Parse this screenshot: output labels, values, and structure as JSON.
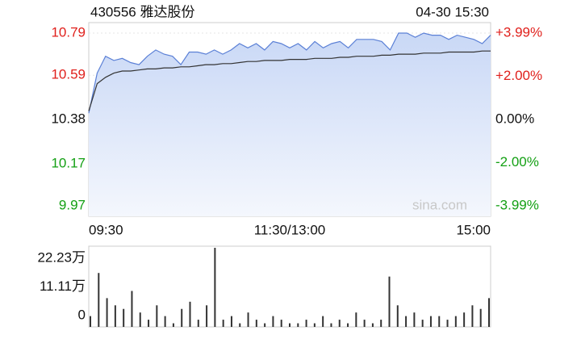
{
  "chart_data": [
    {
      "type": "line",
      "title": "430556 雅达股份",
      "timestamp": "04-30 15:30",
      "watermark": "sina.com",
      "x": [
        0,
        5,
        10,
        15,
        20,
        25,
        30,
        35,
        40,
        45,
        50,
        55,
        60,
        65,
        70,
        75,
        80,
        85,
        90,
        95,
        100,
        105,
        110,
        115,
        120,
        125,
        130,
        135,
        140,
        145,
        150,
        155,
        160,
        165,
        170,
        175,
        180,
        185,
        190,
        195,
        200,
        205,
        210,
        215,
        220,
        225,
        230,
        235,
        240
      ],
      "xlim": [
        0,
        240
      ],
      "xticks": [
        {
          "value": 0,
          "label": "09:30"
        },
        {
          "value": 120,
          "label": "11:30/13:00"
        },
        {
          "value": 240,
          "label": "15:00"
        }
      ],
      "ylim": [
        9.97,
        10.79
      ],
      "yticks": [
        10.79,
        10.59,
        10.38,
        10.17,
        9.97
      ],
      "y2lim": [
        -3.99,
        3.99
      ],
      "y2ticks": [
        {
          "value": 3.99,
          "label": "+3.99%"
        },
        {
          "value": 2.0,
          "label": "+2.00%"
        },
        {
          "value": 0,
          "label": "0.00%"
        },
        {
          "value": -2.0,
          "label": "-2.00%"
        },
        {
          "value": -3.99,
          "label": "-3.99%"
        }
      ],
      "up_color": "#e0201c",
      "down_color": "#14a014",
      "flat_color": "#111111",
      "series": [
        {
          "color": "#5b80d6",
          "area": true,
          "values": [
            10.41,
            10.6,
            10.68,
            10.66,
            10.67,
            10.65,
            10.64,
            10.68,
            10.71,
            10.69,
            10.68,
            10.64,
            10.7,
            10.7,
            10.69,
            10.71,
            10.69,
            10.71,
            10.74,
            10.72,
            10.74,
            10.71,
            10.75,
            10.74,
            10.72,
            10.74,
            10.71,
            10.75,
            10.72,
            10.74,
            10.75,
            10.72,
            10.76,
            10.76,
            10.76,
            10.75,
            10.71,
            10.79,
            10.79,
            10.77,
            10.79,
            10.78,
            10.78,
            10.76,
            10.78,
            10.77,
            10.76,
            10.74,
            10.78
          ]
        },
        {
          "color": "#333333",
          "area": false,
          "values": [
            10.42,
            10.55,
            10.58,
            10.6,
            10.61,
            10.61,
            10.615,
            10.62,
            10.62,
            10.625,
            10.625,
            10.63,
            10.63,
            10.635,
            10.64,
            10.64,
            10.645,
            10.645,
            10.65,
            10.655,
            10.655,
            10.66,
            10.66,
            10.66,
            10.665,
            10.665,
            10.665,
            10.67,
            10.67,
            10.67,
            10.675,
            10.675,
            10.68,
            10.68,
            10.68,
            10.685,
            10.685,
            10.69,
            10.69,
            10.69,
            10.695,
            10.695,
            10.695,
            10.7,
            10.7,
            10.7,
            10.7,
            10.705,
            10.705
          ]
        }
      ]
    },
    {
      "type": "bar",
      "x": [
        0,
        5,
        10,
        15,
        20,
        25,
        30,
        35,
        40,
        45,
        50,
        55,
        60,
        65,
        70,
        75,
        80,
        85,
        90,
        95,
        100,
        105,
        110,
        115,
        120,
        125,
        130,
        135,
        140,
        145,
        150,
        155,
        160,
        165,
        170,
        175,
        180,
        185,
        190,
        195,
        200,
        205,
        210,
        215,
        220,
        225,
        230,
        235,
        240
      ],
      "xlim": [
        0,
        240
      ],
      "ylim": [
        0,
        22.23
      ],
      "yticks": [
        {
          "value": 22.23,
          "label": "22.23万"
        },
        {
          "value": 11.11,
          "label": "11.11万"
        },
        0
      ],
      "color": "#333333",
      "values": [
        3,
        15,
        8,
        6,
        5,
        10,
        4,
        2,
        6,
        3,
        1,
        5,
        7,
        2,
        6,
        22,
        2,
        3,
        1,
        4,
        2,
        1,
        3,
        2,
        1,
        1,
        2,
        1,
        3,
        1,
        2,
        1,
        4,
        2,
        1,
        2,
        14,
        6,
        3,
        4,
        2,
        3,
        3,
        2,
        3,
        4,
        6,
        5,
        8
      ]
    }
  ]
}
